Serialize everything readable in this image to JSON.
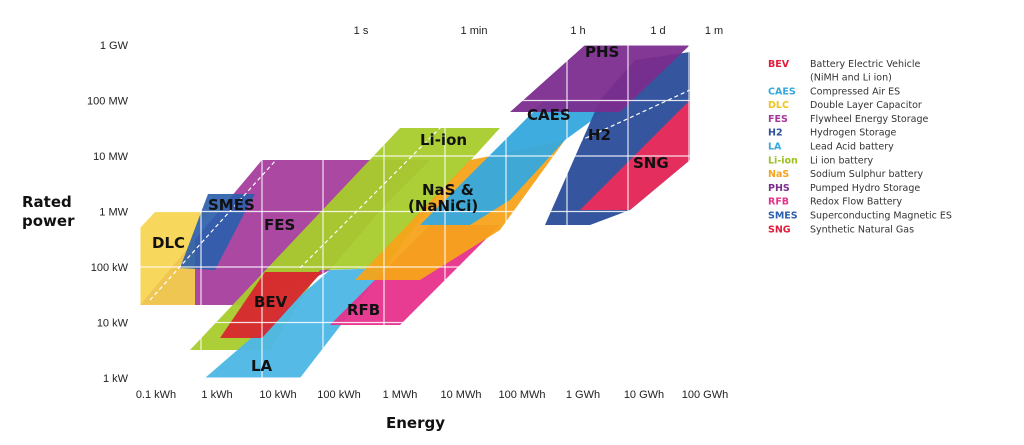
{
  "chart_data": {
    "type": "area",
    "xlabel": "Energy",
    "ylabel": "Rated power",
    "x_ticks": [
      "0.1 kWh",
      "1 kWh",
      "10 kWh",
      "100 kWh",
      "1 MWh",
      "10 MWh",
      "100 MWh",
      "1 GWh",
      "10 GWh",
      "100 GWh"
    ],
    "y_ticks": [
      "1 kW",
      "10 kW",
      "100 kW",
      "1 MW",
      "10 MW",
      "100 MW",
      "1 GW"
    ],
    "time_ticks": [
      "1 s",
      "1 min",
      "1 h",
      "1 d",
      "1 m"
    ],
    "grid": true,
    "series": [
      {
        "abbr": "PHS",
        "name": "Pumped Hydro Storage",
        "color": "#7b2d8e",
        "energy_range": [
          "100 MWh",
          "100 GWh"
        ],
        "power_range": [
          "100 MW",
          "1 GW"
        ]
      },
      {
        "abbr": "SNG",
        "name": "Synthetic Natural Gas",
        "color": "#ee2c5b",
        "energy_range": [
          "1 GWh",
          "100 GWh"
        ],
        "power_range": [
          "1 MW",
          "1 GW"
        ]
      },
      {
        "abbr": "H2",
        "name": "Hydrogen Storage",
        "color": "#2e4f9c",
        "energy_range": [
          "10 MWh",
          "100 GWh"
        ],
        "power_range": [
          "1 MW",
          "1 GW"
        ]
      },
      {
        "abbr": "CAES",
        "name": "Compressed Air ES",
        "color": "#35a8de",
        "energy_range": [
          "10 MWh",
          "10 GWh"
        ],
        "power_range": [
          "10 MW",
          "1 GW"
        ]
      },
      {
        "abbr": "FES",
        "name": "Flywheel Energy Storage",
        "color": "#a3389a",
        "energy_range": [
          "0.1 kWh",
          "10 MWh"
        ],
        "power_range": [
          "100 kW",
          "10 MW"
        ]
      },
      {
        "abbr": "Li-ion",
        "name": "Li ion battery",
        "color": "#a8cc2c",
        "energy_range": [
          "1 kWh",
          "100 MWh"
        ],
        "power_range": [
          "1 kW",
          "100 MW"
        ]
      },
      {
        "abbr": "NaS",
        "name": "Sodium Sulphur battery",
        "color": "#f6a31a",
        "energy_range": [
          "100 kWh",
          "1 GWh"
        ],
        "power_range": [
          "100 kW",
          "100 MW"
        ]
      },
      {
        "abbr": "RFB",
        "name": "Redox Flow Battery",
        "color": "#e6318c",
        "energy_range": [
          "100 kWh",
          "1 GWh"
        ],
        "power_range": [
          "10 kW",
          "100 MW"
        ]
      },
      {
        "abbr": "LA",
        "name": "Lead Acid battery",
        "color": "#4db6e6",
        "energy_range": [
          "1 kWh",
          "100 MWh"
        ],
        "power_range": [
          "1 kW",
          "10 MW"
        ]
      },
      {
        "abbr": "BEV",
        "name": "Battery Electric Vehicle (NiMH and Li ion)",
        "color": "#d8262f",
        "energy_range": [
          "1 kWh",
          "100 kWh"
        ],
        "power_range": [
          "10 kW",
          "100 kW"
        ]
      },
      {
        "abbr": "SMES",
        "name": "Superconducting Magnetic ES",
        "color": "#2c5fad",
        "energy_range": [
          "1 kWh",
          "10 kWh"
        ],
        "power_range": [
          "100 kW",
          "10 MW"
        ]
      },
      {
        "abbr": "DLC",
        "name": "Double Layer Capacitor",
        "color": "#f7d44a",
        "energy_range": [
          "0.1 kWh",
          "1 kWh"
        ],
        "power_range": [
          "100 kW",
          "1 MW"
        ]
      }
    ]
  },
  "region_labels": {
    "PHS": "PHS",
    "CAES": "CAES",
    "H2": "H2",
    "SNG": "SNG",
    "Li-ion": "Li-ion",
    "NaS_line1": "NaS &",
    "NaS_line2": "(NaNiCi)",
    "SMES": "SMES",
    "FES": "FES",
    "DLC": "DLC",
    "BEV": "BEV",
    "RFB": "RFB",
    "LA": "LA"
  },
  "legend": [
    {
      "abbr": "BEV",
      "desc": "Battery Electric Vehicle",
      "desc2": "(NiMH and Li ion)",
      "color": "#e31b3a"
    },
    {
      "abbr": "CAES",
      "desc": "Compressed Air ES",
      "color": "#35a8de"
    },
    {
      "abbr": "DLC",
      "desc": "Double Layer Capacitor",
      "color": "#f2c319"
    },
    {
      "abbr": "FES",
      "desc": "Flywheel Energy Storage",
      "color": "#a3389a"
    },
    {
      "abbr": "H2",
      "desc": "Hydrogen Storage",
      "color": "#2e4f9c"
    },
    {
      "abbr": "LA",
      "desc": "Lead Acid battery",
      "color": "#35a8de"
    },
    {
      "abbr": "Li-ion",
      "desc": "Li ion battery",
      "color": "#9bc21c"
    },
    {
      "abbr": "NaS",
      "desc": "Sodium Sulphur battery",
      "color": "#f6a31a"
    },
    {
      "abbr": "PHS",
      "desc": "Pumped Hydro Storage",
      "color": "#7b2d8e"
    },
    {
      "abbr": "RFB",
      "desc": "Redox Flow Battery",
      "color": "#e6318c"
    },
    {
      "abbr": "SMES",
      "desc": "Superconducting Magnetic ES",
      "color": "#2c5fad"
    },
    {
      "abbr": "SNG",
      "desc": "Synthetic Natural Gas",
      "color": "#e31b3a"
    }
  ]
}
